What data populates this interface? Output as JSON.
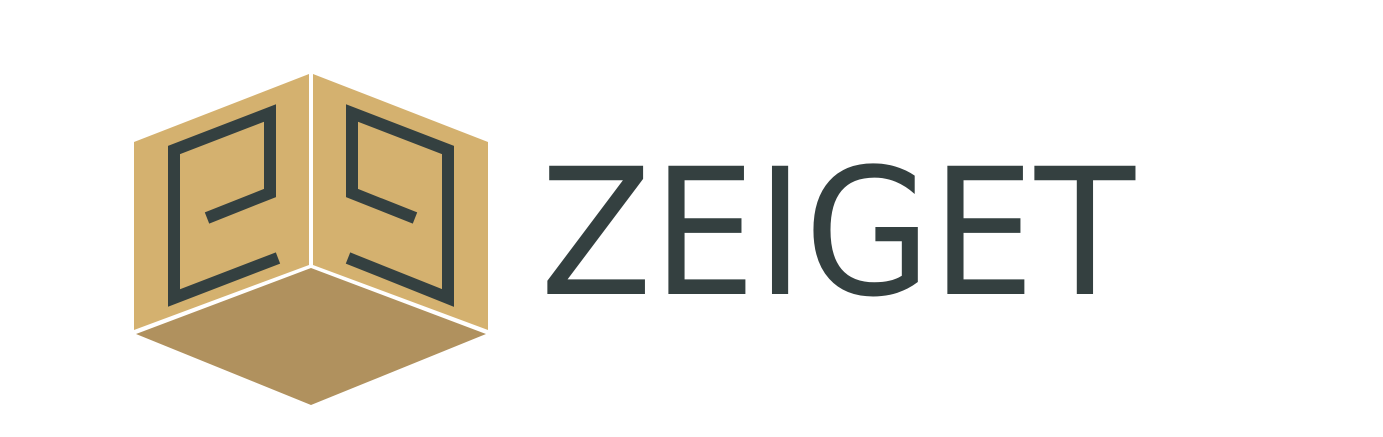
{
  "logo": {
    "wordmark": "ZEIGET"
  }
}
